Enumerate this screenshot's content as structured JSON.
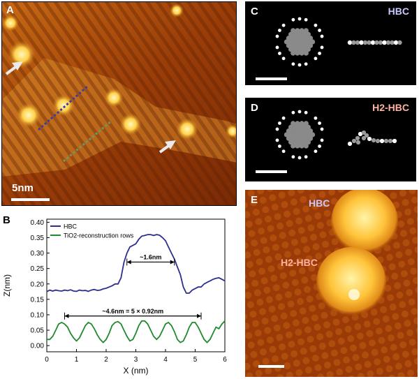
{
  "panels": {
    "a": {
      "label": "A",
      "scalebar": "5nm"
    },
    "b": {
      "label": "B"
    },
    "c": {
      "label": "C",
      "molecule": "HBC"
    },
    "d": {
      "label": "D",
      "molecule": "H2-HBC"
    },
    "e": {
      "label": "E",
      "molecule_top": "HBC",
      "molecule_bottom": "H2-HBC"
    }
  },
  "colors": {
    "hbc": "#2e2e8f",
    "rows": "#1f8a2e",
    "hbc_label": "#c8c8ff",
    "h2hbc_label": "#ffb3a0"
  },
  "chart_data": {
    "type": "line",
    "xlabel": "X (nm)",
    "ylabel": "Z(nm)",
    "xlim": [
      0,
      6
    ],
    "ylim": [
      -0.02,
      0.41
    ],
    "xticks": [
      "0",
      "1",
      "2",
      "3",
      "4",
      "5",
      "6"
    ],
    "yticks": [
      "0.00",
      "0.05",
      "0.10",
      "0.15",
      "0.20",
      "0.25",
      "0.30",
      "0.35",
      "0.40"
    ],
    "legend": {
      "position": "top-left",
      "entries": [
        "HBC",
        "TiO2-reconstruction rows"
      ]
    },
    "annotations": {
      "plateau_width": "~1.6nm",
      "period": "~4.6nm = 5 × 0.92nm"
    },
    "series": [
      {
        "name": "HBC",
        "x": [
          0,
          0.1,
          0.2,
          0.3,
          0.4,
          0.5,
          0.6,
          0.7,
          0.8,
          0.9,
          1.0,
          1.1,
          1.2,
          1.3,
          1.4,
          1.5,
          1.6,
          1.7,
          1.8,
          1.9,
          2.0,
          2.1,
          2.2,
          2.3,
          2.4,
          2.5,
          2.6,
          2.7,
          2.8,
          2.9,
          3.0,
          3.1,
          3.2,
          3.3,
          3.4,
          3.5,
          3.6,
          3.7,
          3.8,
          3.9,
          4.0,
          4.1,
          4.2,
          4.3,
          4.4,
          4.5,
          4.6,
          4.7,
          4.8,
          4.9,
          5.0,
          5.1,
          5.2,
          5.3,
          5.4,
          5.5,
          5.6,
          5.7,
          5.8,
          5.9,
          6.0
        ],
        "y": [
          0.175,
          0.18,
          0.177,
          0.18,
          0.178,
          0.177,
          0.18,
          0.178,
          0.181,
          0.177,
          0.176,
          0.18,
          0.178,
          0.179,
          0.176,
          0.18,
          0.182,
          0.179,
          0.18,
          0.184,
          0.186,
          0.19,
          0.194,
          0.2,
          0.2,
          0.22,
          0.27,
          0.3,
          0.32,
          0.325,
          0.33,
          0.345,
          0.355,
          0.357,
          0.36,
          0.36,
          0.357,
          0.36,
          0.358,
          0.35,
          0.34,
          0.32,
          0.3,
          0.28,
          0.255,
          0.23,
          0.19,
          0.17,
          0.17,
          0.18,
          0.185,
          0.19,
          0.19,
          0.2,
          0.205,
          0.21,
          0.215,
          0.218,
          0.22,
          0.215,
          0.21
        ]
      },
      {
        "name": "TiO2-reconstruction rows",
        "x": [
          0,
          0.1,
          0.2,
          0.3,
          0.4,
          0.5,
          0.6,
          0.7,
          0.8,
          0.9,
          1.0,
          1.1,
          1.2,
          1.3,
          1.4,
          1.5,
          1.6,
          1.7,
          1.8,
          1.9,
          2.0,
          2.1,
          2.2,
          2.3,
          2.4,
          2.5,
          2.6,
          2.7,
          2.8,
          2.9,
          3.0,
          3.1,
          3.2,
          3.3,
          3.4,
          3.5,
          3.6,
          3.7,
          3.8,
          3.9,
          4.0,
          4.1,
          4.2,
          4.3,
          4.4,
          4.5,
          4.6,
          4.7,
          4.8,
          4.9,
          5.0,
          5.1,
          5.2,
          5.3,
          5.4,
          5.5,
          5.6,
          5.7,
          5.8,
          5.9,
          6.0
        ],
        "y": [
          0.02,
          0.02,
          0.03,
          0.05,
          0.07,
          0.075,
          0.07,
          0.06,
          0.04,
          0.025,
          0.015,
          0.025,
          0.045,
          0.065,
          0.075,
          0.07,
          0.055,
          0.035,
          0.02,
          0.01,
          0.02,
          0.04,
          0.065,
          0.075,
          0.078,
          0.07,
          0.05,
          0.03,
          0.015,
          0.02,
          0.04,
          0.065,
          0.08,
          0.08,
          0.07,
          0.05,
          0.03,
          0.02,
          0.03,
          0.05,
          0.07,
          0.075,
          0.065,
          0.045,
          0.02,
          0.01,
          0.015,
          0.035,
          0.06,
          0.075,
          0.075,
          0.06,
          0.04,
          0.02,
          0.01,
          0.02,
          0.04,
          0.06,
          0.055,
          0.07,
          0.08
        ]
      }
    ]
  }
}
